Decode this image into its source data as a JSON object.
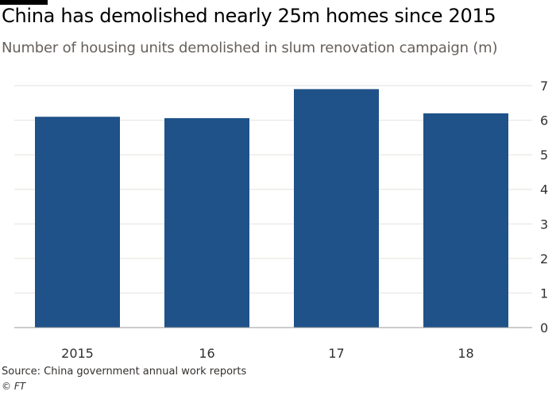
{
  "header": {
    "title": "China has demolished nearly 25m homes since 2015",
    "subtitle": "Number of housing units demolished in slum renovation campaign (m)"
  },
  "footer": {
    "source": "Source: China government annual work reports",
    "credit": "© FT"
  },
  "colors": {
    "bar": "#1f5289",
    "grid": "#e6e2de",
    "baseline": "#999999"
  },
  "chart_data": {
    "type": "bar",
    "categories": [
      "2015",
      "16",
      "17",
      "18"
    ],
    "values": [
      6.1,
      6.06,
      6.9,
      6.2
    ],
    "ylim": [
      0,
      7
    ],
    "yticks": [
      0,
      1,
      2,
      3,
      4,
      5,
      6,
      7
    ],
    "y_axis_side": "right",
    "grid": true,
    "xlabel": "",
    "ylabel": ""
  }
}
